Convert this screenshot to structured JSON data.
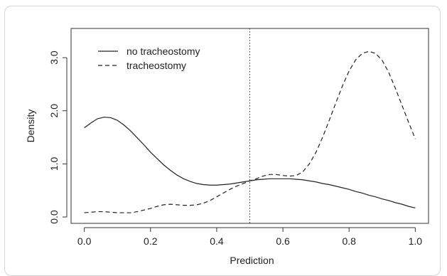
{
  "chart_data": {
    "type": "line",
    "title": "",
    "xlabel": "Prediction",
    "ylabel": "Density",
    "xlim": [
      -0.04,
      1.04
    ],
    "ylim": [
      -0.12,
      3.55
    ],
    "x_ticks": [
      0.0,
      0.2,
      0.4,
      0.6,
      0.8,
      1.0
    ],
    "x_tick_labels": [
      "0.0",
      "0.2",
      "0.4",
      "0.6",
      "0.8",
      "1.0"
    ],
    "y_ticks": [
      0.0,
      1.0,
      2.0,
      3.0
    ],
    "y_tick_labels": [
      "0.0",
      "1.0",
      "2.0",
      "3.0"
    ],
    "grid": false,
    "legend_position": "top-left",
    "reference_line": {
      "x": 0.5,
      "style": "dotted"
    },
    "series": [
      {
        "name": "no tracheostomy",
        "line_style": "solid",
        "color": "#222222",
        "x": [
          0.0,
          0.02,
          0.04,
          0.06,
          0.08,
          0.1,
          0.12,
          0.14,
          0.16,
          0.18,
          0.2,
          0.22,
          0.24,
          0.26,
          0.28,
          0.3,
          0.32,
          0.34,
          0.36,
          0.38,
          0.4,
          0.42,
          0.44,
          0.46,
          0.48,
          0.5,
          0.52,
          0.54,
          0.56,
          0.58,
          0.6,
          0.62,
          0.64,
          0.66,
          0.68,
          0.7,
          0.72,
          0.74,
          0.76,
          0.78,
          0.8,
          0.82,
          0.84,
          0.86,
          0.88,
          0.9,
          0.92,
          0.94,
          0.96,
          0.98,
          1.0
        ],
        "y": [
          1.68,
          1.77,
          1.85,
          1.88,
          1.87,
          1.82,
          1.73,
          1.62,
          1.49,
          1.36,
          1.22,
          1.1,
          0.98,
          0.88,
          0.79,
          0.72,
          0.67,
          0.63,
          0.61,
          0.6,
          0.6,
          0.61,
          0.62,
          0.64,
          0.66,
          0.68,
          0.7,
          0.71,
          0.72,
          0.72,
          0.72,
          0.72,
          0.71,
          0.7,
          0.68,
          0.66,
          0.63,
          0.61,
          0.58,
          0.55,
          0.52,
          0.48,
          0.45,
          0.41,
          0.38,
          0.34,
          0.31,
          0.27,
          0.24,
          0.2,
          0.17
        ]
      },
      {
        "name": "tracheostomy",
        "line_style": "dashed",
        "color": "#222222",
        "x": [
          0.0,
          0.02,
          0.04,
          0.06,
          0.08,
          0.1,
          0.12,
          0.14,
          0.16,
          0.18,
          0.2,
          0.22,
          0.24,
          0.26,
          0.28,
          0.3,
          0.32,
          0.34,
          0.36,
          0.38,
          0.4,
          0.42,
          0.44,
          0.46,
          0.48,
          0.5,
          0.52,
          0.54,
          0.56,
          0.58,
          0.6,
          0.62,
          0.64,
          0.66,
          0.68,
          0.7,
          0.72,
          0.74,
          0.76,
          0.78,
          0.8,
          0.82,
          0.84,
          0.86,
          0.88,
          0.9,
          0.92,
          0.94,
          0.96,
          0.98,
          1.0
        ],
        "y": [
          0.08,
          0.09,
          0.1,
          0.1,
          0.09,
          0.08,
          0.08,
          0.08,
          0.1,
          0.13,
          0.16,
          0.2,
          0.23,
          0.24,
          0.23,
          0.22,
          0.22,
          0.23,
          0.26,
          0.31,
          0.38,
          0.45,
          0.52,
          0.58,
          0.63,
          0.68,
          0.72,
          0.77,
          0.8,
          0.8,
          0.78,
          0.77,
          0.78,
          0.85,
          1.0,
          1.22,
          1.5,
          1.82,
          2.15,
          2.47,
          2.75,
          2.96,
          3.08,
          3.12,
          3.08,
          2.95,
          2.72,
          2.42,
          2.1,
          1.78,
          1.47
        ]
      }
    ]
  }
}
